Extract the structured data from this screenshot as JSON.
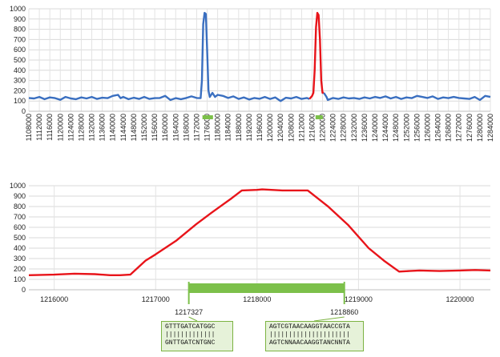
{
  "chart_data": [
    {
      "type": "line",
      "ylim": [
        0,
        1000
      ],
      "yticks": [
        0,
        100,
        200,
        300,
        400,
        500,
        600,
        700,
        800,
        900,
        1000
      ],
      "xlim": [
        1108000,
        1284000
      ],
      "xticks": [
        1108000,
        1112000,
        1116000,
        1120000,
        1124000,
        1128000,
        1132000,
        1136000,
        1140000,
        1144000,
        1148000,
        1152000,
        1156000,
        1160000,
        1164000,
        1168000,
        1172000,
        1176000,
        1180000,
        1184000,
        1188000,
        1192000,
        1196000,
        1200000,
        1204000,
        1208000,
        1212000,
        1216000,
        1220000,
        1224000,
        1228000,
        1232000,
        1236000,
        1240000,
        1244000,
        1248000,
        1252000,
        1256000,
        1260000,
        1264000,
        1268000,
        1272000,
        1276000,
        1280000,
        1284000
      ],
      "grid": true,
      "colors": {
        "baseline": "#3a6fc0",
        "highlight": "#e8141a",
        "bar": "#7cc04a"
      },
      "series": [
        {
          "color": "#3a6fc0",
          "points": [
            [
              1108000,
              130
            ],
            [
              1110000,
              125
            ],
            [
              1112000,
              140
            ],
            [
              1114000,
              118
            ],
            [
              1116000,
              135
            ],
            [
              1118000,
              128
            ],
            [
              1120000,
              112
            ],
            [
              1122000,
              140
            ],
            [
              1124000,
              125
            ],
            [
              1126000,
              118
            ],
            [
              1128000,
              135
            ],
            [
              1130000,
              125
            ],
            [
              1132000,
              140
            ],
            [
              1134000,
              120
            ],
            [
              1136000,
              132
            ],
            [
              1138000,
              128
            ],
            [
              1140000,
              150
            ],
            [
              1142000,
              160
            ],
            [
              1143000,
              128
            ],
            [
              1144000,
              140
            ],
            [
              1146000,
              118
            ],
            [
              1148000,
              132
            ],
            [
              1150000,
              120
            ],
            [
              1152000,
              140
            ],
            [
              1154000,
              120
            ],
            [
              1156000,
              128
            ],
            [
              1158000,
              130
            ],
            [
              1160000,
              150
            ],
            [
              1162000,
              110
            ],
            [
              1164000,
              128
            ],
            [
              1166000,
              118
            ],
            [
              1168000,
              130
            ],
            [
              1170000,
              145
            ],
            [
              1172000,
              130
            ],
            [
              1173500,
              128
            ],
            [
              1174000,
              300
            ],
            [
              1174500,
              850
            ],
            [
              1175000,
              960
            ],
            [
              1175500,
              950
            ],
            [
              1176000,
              600
            ],
            [
              1176500,
              200
            ],
            [
              1177000,
              140
            ],
            [
              1178000,
              180
            ],
            [
              1179000,
              140
            ],
            [
              1180000,
              160
            ],
            [
              1182000,
              150
            ],
            [
              1184000,
              130
            ],
            [
              1186000,
              145
            ],
            [
              1188000,
              120
            ],
            [
              1190000,
              135
            ],
            [
              1192000,
              115
            ],
            [
              1194000,
              130
            ],
            [
              1196000,
              122
            ],
            [
              1198000,
              140
            ],
            [
              1200000,
              120
            ],
            [
              1202000,
              135
            ],
            [
              1204000,
              100
            ],
            [
              1206000,
              132
            ],
            [
              1208000,
              125
            ],
            [
              1210000,
              140
            ],
            [
              1212000,
              120
            ],
            [
              1214000,
              130
            ],
            [
              1215000,
              120
            ]
          ]
        },
        {
          "color": "#e8141a",
          "points": [
            [
              1215000,
              120
            ],
            [
              1216000,
              150
            ],
            [
              1216500,
              180
            ],
            [
              1217000,
              400
            ],
            [
              1217500,
              820
            ],
            [
              1218000,
              960
            ],
            [
              1218500,
              940
            ],
            [
              1219000,
              700
            ],
            [
              1219500,
              300
            ],
            [
              1220000,
              180
            ],
            [
              1220500,
              180
            ]
          ]
        },
        {
          "color": "#3a6fc0",
          "points": [
            [
              1220500,
              180
            ],
            [
              1221500,
              140
            ],
            [
              1222000,
              110
            ],
            [
              1224000,
              130
            ],
            [
              1226000,
              120
            ],
            [
              1228000,
              135
            ],
            [
              1230000,
              125
            ],
            [
              1232000,
              130
            ],
            [
              1234000,
              120
            ],
            [
              1236000,
              135
            ],
            [
              1238000,
              125
            ],
            [
              1240000,
              140
            ],
            [
              1242000,
              130
            ],
            [
              1244000,
              145
            ],
            [
              1246000,
              125
            ],
            [
              1248000,
              140
            ],
            [
              1250000,
              120
            ],
            [
              1252000,
              135
            ],
            [
              1254000,
              128
            ],
            [
              1256000,
              150
            ],
            [
              1258000,
              140
            ],
            [
              1260000,
              130
            ],
            [
              1262000,
              145
            ],
            [
              1264000,
              120
            ],
            [
              1266000,
              135
            ],
            [
              1268000,
              128
            ],
            [
              1270000,
              140
            ],
            [
              1272000,
              130
            ],
            [
              1274000,
              125
            ],
            [
              1276000,
              120
            ],
            [
              1278000,
              140
            ],
            [
              1280000,
              110
            ],
            [
              1282000,
              150
            ],
            [
              1284000,
              140
            ]
          ]
        }
      ],
      "bars": [
        {
          "x0": 1174200,
          "x1": 1177000,
          "y": -50
        },
        {
          "x0": 1217327,
          "x1": 1218860,
          "y": -50
        }
      ]
    },
    {
      "type": "line",
      "ylim": [
        0,
        1000
      ],
      "yticks": [
        0,
        100,
        200,
        300,
        400,
        500,
        600,
        700,
        800,
        900,
        1000
      ],
      "xlim": [
        1215750,
        1220300
      ],
      "xticks": [
        1216000,
        1217000,
        1218000,
        1219000,
        1220000
      ],
      "grid": true,
      "series": [
        {
          "color": "#e8141a",
          "points": [
            [
              1215750,
              140
            ],
            [
              1216000,
              145
            ],
            [
              1216200,
              155
            ],
            [
              1216400,
              150
            ],
            [
              1216550,
              140
            ],
            [
              1216650,
              140
            ],
            [
              1216750,
              145
            ],
            [
              1216900,
              280
            ],
            [
              1217000,
              340
            ],
            [
              1217200,
              470
            ],
            [
              1217400,
              630
            ],
            [
              1217550,
              740
            ],
            [
              1217750,
              880
            ],
            [
              1217850,
              955
            ],
            [
              1218000,
              960
            ],
            [
              1218050,
              965
            ],
            [
              1218250,
              955
            ],
            [
              1218500,
              955
            ],
            [
              1218700,
              800
            ],
            [
              1218900,
              620
            ],
            [
              1219100,
              400
            ],
            [
              1219250,
              280
            ],
            [
              1219400,
              175
            ],
            [
              1219500,
              180
            ],
            [
              1219600,
              185
            ],
            [
              1219800,
              180
            ],
            [
              1220000,
              185
            ],
            [
              1220150,
              190
            ],
            [
              1220300,
              185
            ]
          ]
        }
      ],
      "bar": {
        "x0": 1217327,
        "x1": 1218860,
        "y": -25
      },
      "annotations": [
        {
          "label": "1217327",
          "x": 1217327
        },
        {
          "label": "1218860",
          "x": 1218860
        }
      ]
    }
  ],
  "sequences": {
    "left": {
      "line1": "GTTTGATCATGGC",
      "line2": "|||||||||||||",
      "line3": "GNTTGATCNTGNC"
    },
    "right": {
      "line1": "AGTCGTAACAAGGTAACCGTA",
      "line2": "|||||||||||||||||||||",
      "line3": "AGTCNNAACAAGGTANCNNTA"
    }
  }
}
